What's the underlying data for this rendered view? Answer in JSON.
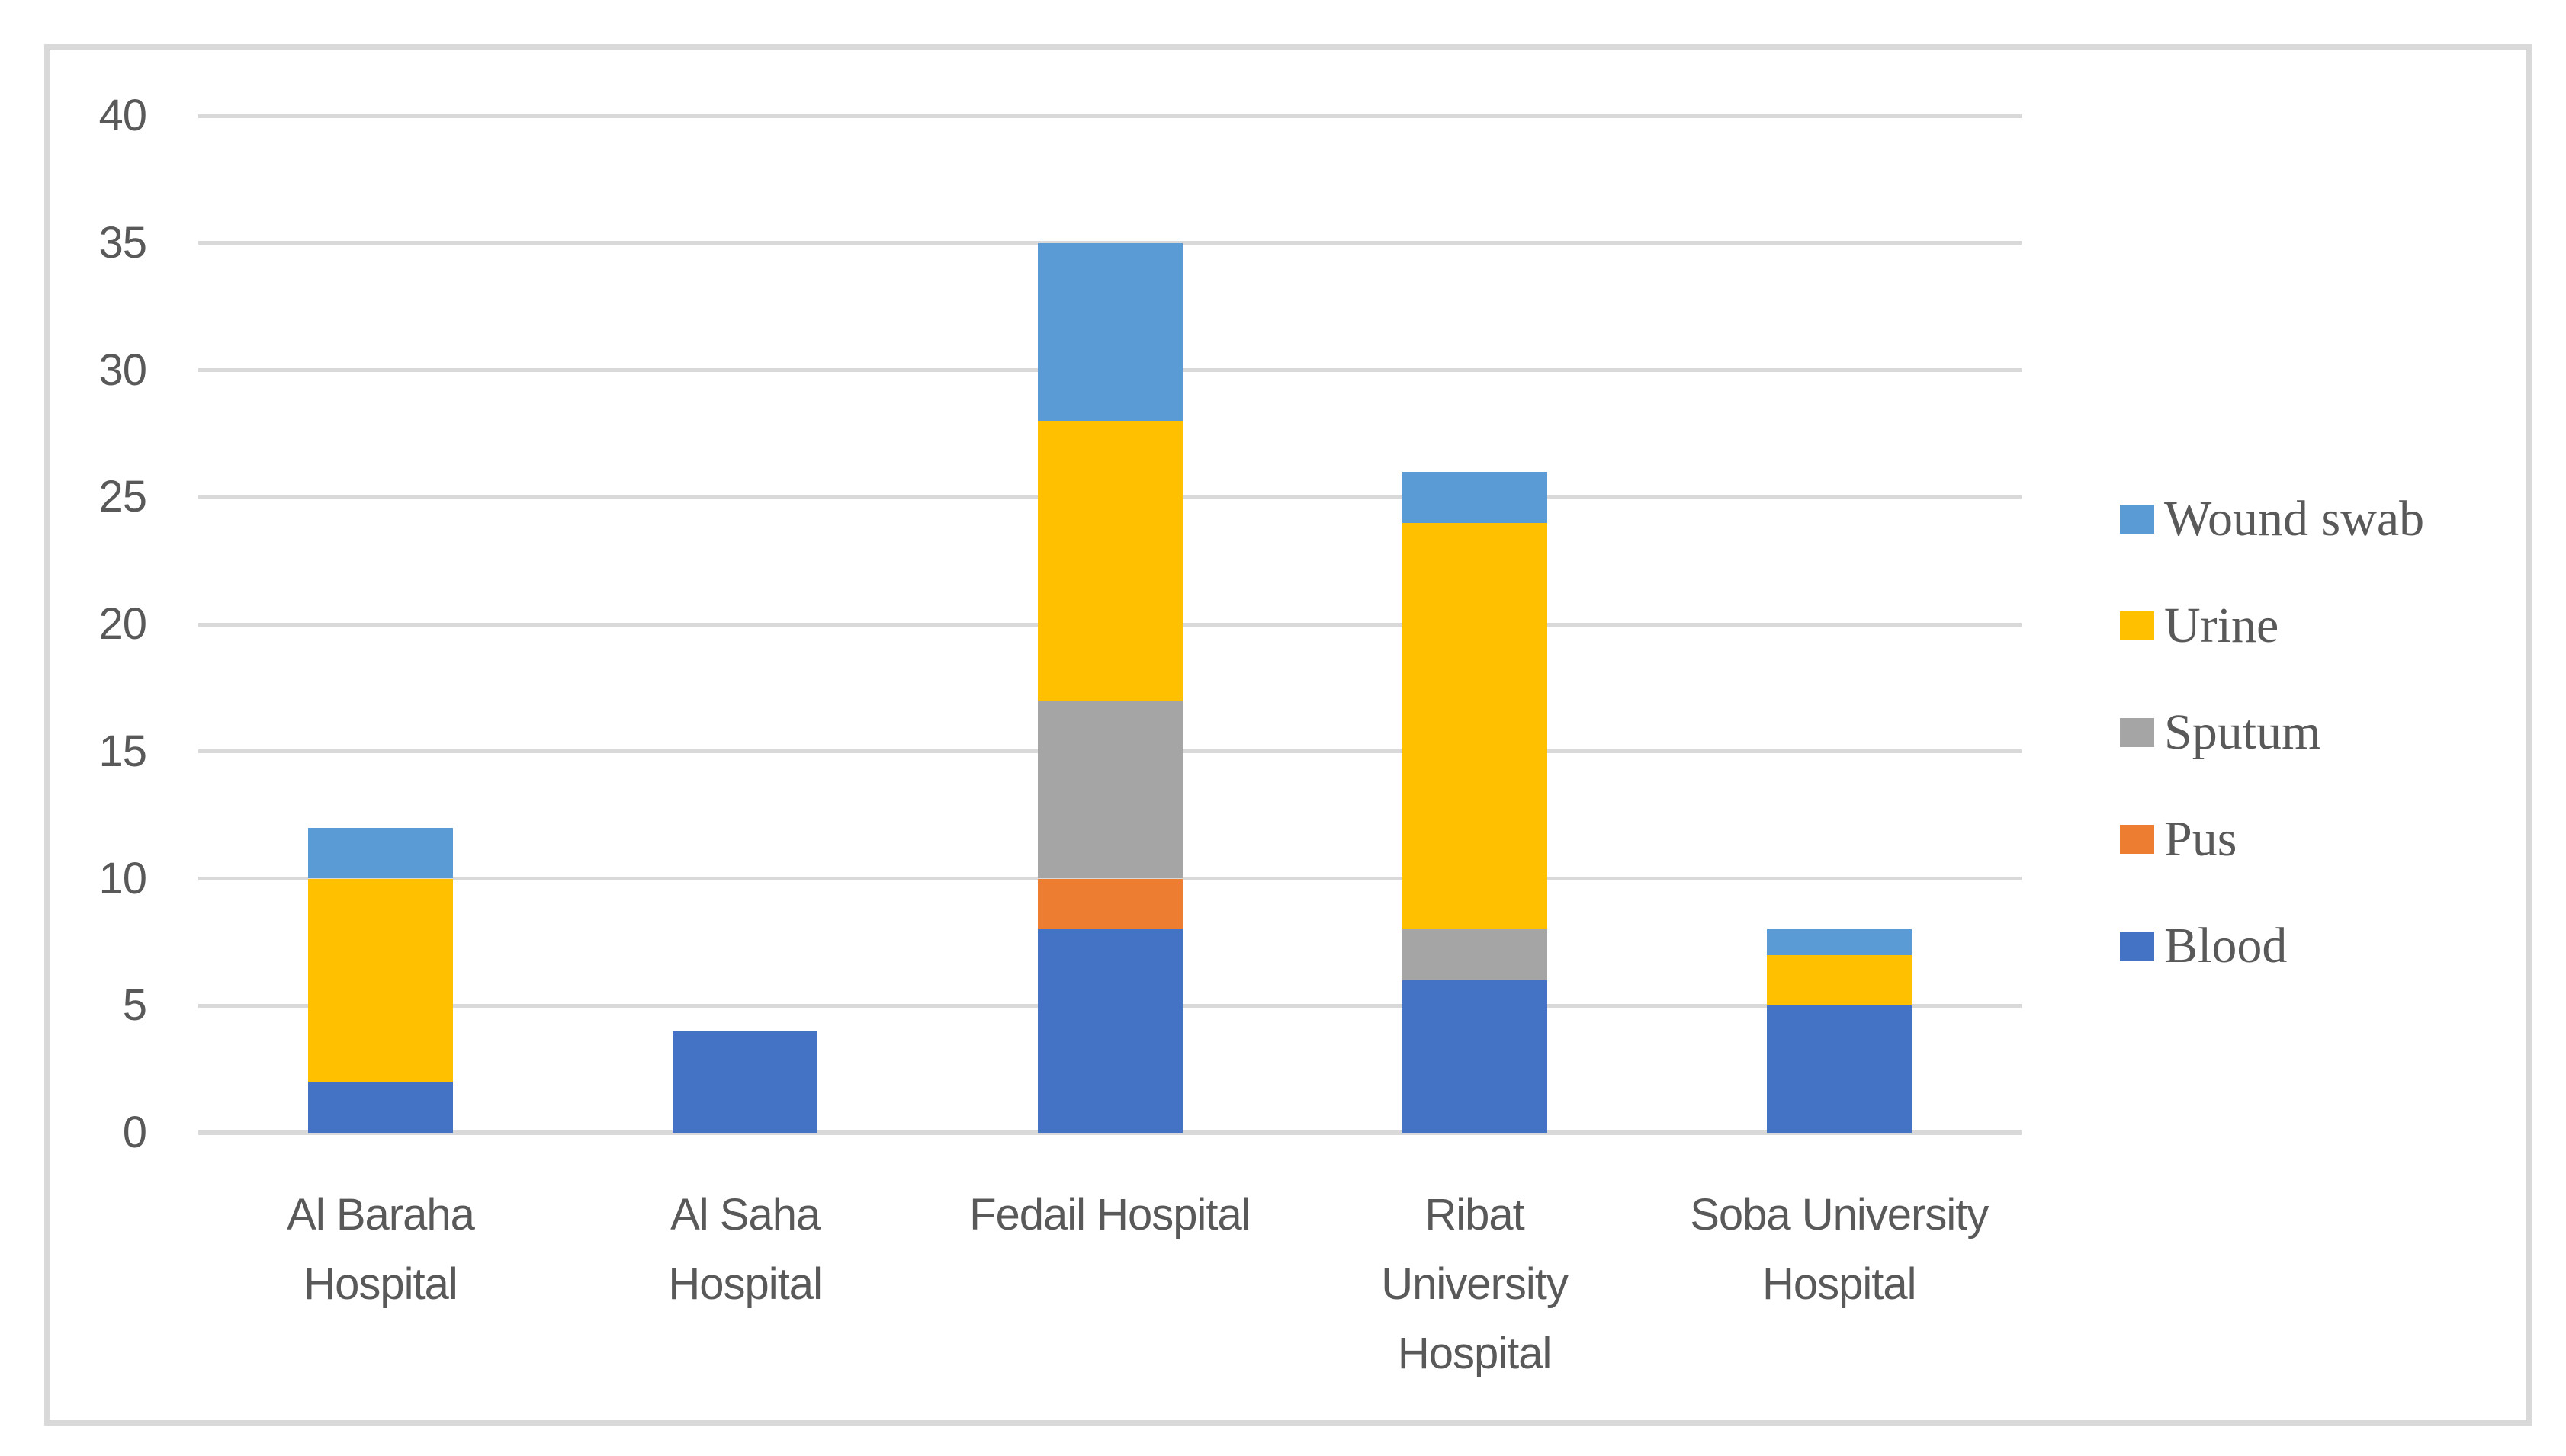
{
  "chart_data": {
    "type": "bar",
    "stacked": true,
    "title": "",
    "xlabel": "",
    "ylabel": "",
    "categories": [
      "Al Baraha Hospital",
      "Al Saha Hospital",
      "Fedail Hospital",
      "Ribat University Hospital",
      "Soba University Hospital"
    ],
    "category_label_lines": [
      [
        "Al Baraha",
        "Hospital"
      ],
      [
        "Al Saha",
        "Hospital"
      ],
      [
        "Fedail Hospital"
      ],
      [
        "Ribat",
        "University",
        "Hospital"
      ],
      [
        "Soba University",
        "Hospital"
      ]
    ],
    "series": [
      {
        "name": "Blood",
        "color": "#4472C4",
        "values": [
          2,
          4,
          8,
          6,
          5
        ]
      },
      {
        "name": "Pus",
        "color": "#ED7D31",
        "values": [
          0,
          0,
          2,
          0,
          0
        ]
      },
      {
        "name": "Sputum",
        "color": "#A5A5A5",
        "values": [
          0,
          0,
          7,
          2,
          0
        ]
      },
      {
        "name": "Urine",
        "color": "#FFC000",
        "values": [
          8,
          0,
          11,
          16,
          2
        ]
      },
      {
        "name": "Wound swab",
        "color": "#5B9BD5",
        "values": [
          2,
          0,
          7,
          2,
          1
        ]
      }
    ],
    "category_totals": [
      12,
      4,
      35,
      26,
      8
    ],
    "y_axis": {
      "min": 0,
      "max": 40,
      "step": 5,
      "tick_labels": [
        "0",
        "5",
        "10",
        "15",
        "20",
        "25",
        "30",
        "35",
        "40"
      ]
    },
    "grid": true,
    "legend": {
      "position": "right",
      "order_top_to_bottom": [
        "Wound swab",
        "Urine",
        "Sputum",
        "Pus",
        "Blood"
      ]
    },
    "colors": {
      "gridline": "#D9D9D9",
      "chart_border": "#D9D9D9",
      "axis_text": "#595959",
      "background": "#FFFFFF"
    }
  }
}
